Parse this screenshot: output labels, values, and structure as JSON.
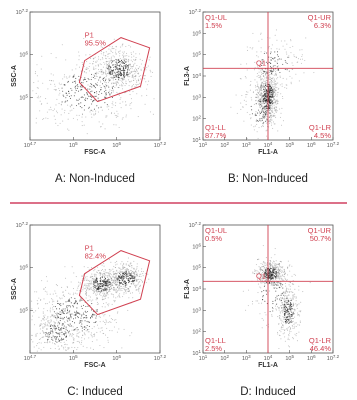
{
  "panels": [
    {
      "caption": "A: Non-Induced",
      "x_label": "FSC-A",
      "y_label": "SSC-A",
      "x_ticks": [
        {
          "base": "10",
          "exp": "4.7"
        },
        {
          "base": "10",
          "exp": "5"
        },
        {
          "base": "10",
          "exp": "6"
        },
        {
          "base": "10",
          "exp": "7.2"
        }
      ],
      "y_ticks": [
        {
          "base": "10",
          "exp": "5"
        },
        {
          "base": "10",
          "exp": "6"
        },
        {
          "base": "10",
          "exp": "7.2"
        }
      ],
      "gate": {
        "name": "P1",
        "percent": "95.5%"
      }
    },
    {
      "caption": "B: Non-Induced",
      "x_label": "FL1-A",
      "y_label": "FL3-A",
      "x_ticks": [
        {
          "base": "10",
          "exp": "1"
        },
        {
          "base": "10",
          "exp": "2"
        },
        {
          "base": "10",
          "exp": "3"
        },
        {
          "base": "10",
          "exp": "4"
        },
        {
          "base": "10",
          "exp": "5"
        },
        {
          "base": "10",
          "exp": "6"
        },
        {
          "base": "10",
          "exp": "7.2"
        }
      ],
      "y_ticks": [
        {
          "base": "10",
          "exp": "1"
        },
        {
          "base": "10",
          "exp": "2"
        },
        {
          "base": "10",
          "exp": "3"
        },
        {
          "base": "10",
          "exp": "4"
        },
        {
          "base": "10",
          "exp": "5"
        },
        {
          "base": "10",
          "exp": "6"
        },
        {
          "base": "10",
          "exp": "7.2"
        }
      ],
      "quadrant": {
        "name": "Q1",
        "ul": {
          "name": "Q1-UL",
          "percent": "1.5%"
        },
        "ur": {
          "name": "Q1-UR",
          "percent": "6.3%"
        },
        "ll": {
          "name": "Q1-LL",
          "percent": "87.7%"
        },
        "lr": {
          "name": "Q1-LR",
          "percent": "4.5%"
        }
      }
    },
    {
      "caption": "C: Induced",
      "x_label": "FSC-A",
      "y_label": "SSC-A",
      "x_ticks": [
        {
          "base": "10",
          "exp": "4.7"
        },
        {
          "base": "10",
          "exp": "5"
        },
        {
          "base": "10",
          "exp": "6"
        },
        {
          "base": "10",
          "exp": "7.2"
        }
      ],
      "y_ticks": [
        {
          "base": "10",
          "exp": "5"
        },
        {
          "base": "10",
          "exp": "6"
        },
        {
          "base": "10",
          "exp": "7.2"
        }
      ],
      "gate": {
        "name": "P1",
        "percent": "82.4%"
      }
    },
    {
      "caption": "D: Induced",
      "x_label": "FL1-A",
      "y_label": "FL3-A",
      "x_ticks": [
        {
          "base": "10",
          "exp": "1"
        },
        {
          "base": "10",
          "exp": "2"
        },
        {
          "base": "10",
          "exp": "3"
        },
        {
          "base": "10",
          "exp": "4"
        },
        {
          "base": "10",
          "exp": "5"
        },
        {
          "base": "10",
          "exp": "6"
        },
        {
          "base": "10",
          "exp": "7.2"
        }
      ],
      "y_ticks": [
        {
          "base": "10",
          "exp": "1"
        },
        {
          "base": "10",
          "exp": "2"
        },
        {
          "base": "10",
          "exp": "3"
        },
        {
          "base": "10",
          "exp": "4"
        },
        {
          "base": "10",
          "exp": "5"
        },
        {
          "base": "10",
          "exp": "6"
        },
        {
          "base": "10",
          "exp": "7.2"
        }
      ],
      "quadrant": {
        "name": "Q1",
        "ul": {
          "name": "Q1-UL",
          "percent": "0.5%"
        },
        "ur": {
          "name": "Q1-UR",
          "percent": "50.7%"
        },
        "ll": {
          "name": "Q1-LL",
          "percent": "2.5%"
        },
        "lr": {
          "name": "Q1-LR",
          "percent": "46.4%"
        }
      }
    }
  ]
}
